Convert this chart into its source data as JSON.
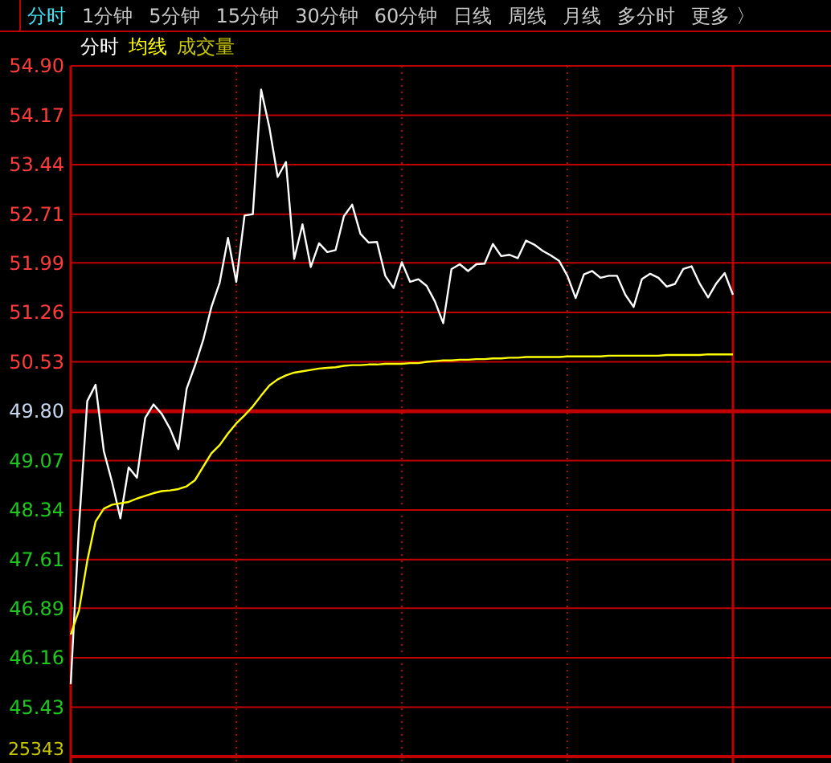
{
  "chart_data": {
    "type": "line",
    "grid": true,
    "tick_labels": "y",
    "marker": "none",
    "line_style": "solid",
    "categories": [
      null,
      null,
      null,
      null,
      null,
      null,
      null,
      null,
      null,
      null,
      null,
      null,
      null,
      null,
      null,
      null,
      null,
      null,
      null,
      null,
      null,
      null,
      null,
      null,
      null,
      null,
      null,
      null,
      null,
      null,
      null,
      null,
      null,
      null,
      null,
      null,
      null,
      null,
      null,
      null,
      null,
      null,
      null,
      null,
      null,
      null,
      null,
      null,
      null,
      null,
      null,
      null,
      null,
      null,
      null,
      null,
      null,
      null,
      null,
      null,
      null,
      null,
      null,
      null,
      null,
      null,
      null,
      null,
      null,
      null,
      null,
      null,
      null,
      null,
      null,
      null,
      null,
      null,
      null,
      null,
      null
    ],
    "ylim": [
      44.7,
      54.9
    ],
    "yticks": [
      45.43,
      46.16,
      46.89,
      47.61,
      48.34,
      49.07,
      {
        "value": 49.8,
        "label": "49.80"
      },
      50.53,
      51.26,
      51.99,
      52.71,
      53.44,
      54.17,
      {
        "value": 54.9,
        "label": "54.90"
      }
    ],
    "ref_lines": [
      {
        "axis": "y",
        "value": 49.8,
        "color": "#c00000"
      }
    ],
    "annotations": [
      "分时",
      "1分钟",
      "5分钟",
      "15分钟",
      "30分钟",
      "60分钟",
      "日线",
      "周线",
      "月线",
      "多分时",
      "更多 〉",
      "成交量",
      "25343"
    ],
    "series": [
      {
        "name": "分时",
        "color": "#ffffff",
        "values": [
          45.77,
          48.1,
          49.95,
          50.19,
          49.21,
          48.75,
          48.22,
          48.97,
          48.82,
          49.7,
          49.9,
          49.76,
          49.54,
          49.24,
          50.13,
          50.47,
          50.85,
          51.34,
          51.7,
          52.36,
          51.71,
          52.69,
          52.71,
          54.55,
          53.99,
          53.26,
          53.48,
          52.05,
          52.56,
          51.93,
          52.28,
          52.15,
          52.18,
          52.68,
          52.85,
          52.42,
          52.29,
          52.3,
          51.8,
          51.62,
          52.0,
          51.71,
          51.75,
          51.65,
          51.42,
          51.1,
          51.9,
          51.97,
          51.87,
          51.97,
          51.98,
          52.27,
          52.09,
          52.11,
          52.06,
          52.32,
          52.26,
          52.17,
          52.1,
          52.02,
          51.8,
          51.47,
          51.82,
          51.87,
          51.77,
          51.8,
          51.8,
          51.52,
          51.34,
          51.75,
          51.83,
          51.77,
          51.64,
          51.68,
          51.9,
          51.94,
          51.68,
          51.48,
          51.69,
          51.84,
          51.52
        ]
      },
      {
        "name": "均线",
        "color": "#ffff00",
        "values": [
          46.5,
          46.86,
          47.59,
          48.17,
          48.36,
          48.42,
          48.44,
          48.46,
          48.51,
          48.55,
          48.59,
          48.62,
          48.63,
          48.65,
          48.69,
          48.78,
          48.98,
          49.18,
          49.3,
          49.47,
          49.62,
          49.74,
          49.87,
          50.03,
          50.18,
          50.27,
          50.33,
          50.37,
          50.39,
          50.41,
          50.43,
          50.44,
          50.45,
          50.47,
          50.48,
          50.48,
          50.49,
          50.49,
          50.5,
          50.5,
          50.5,
          50.51,
          50.51,
          50.53,
          50.54,
          50.55,
          50.55,
          50.56,
          50.56,
          50.57,
          50.57,
          50.58,
          50.58,
          50.59,
          50.59,
          50.6,
          50.6,
          50.6,
          50.6,
          50.6,
          50.61,
          50.61,
          50.61,
          50.61,
          50.61,
          50.62,
          50.62,
          50.62,
          50.62,
          50.62,
          50.62,
          50.62,
          50.63,
          50.63,
          50.63,
          50.63,
          50.63,
          50.64,
          50.64,
          50.64,
          50.64
        ]
      }
    ]
  }
}
